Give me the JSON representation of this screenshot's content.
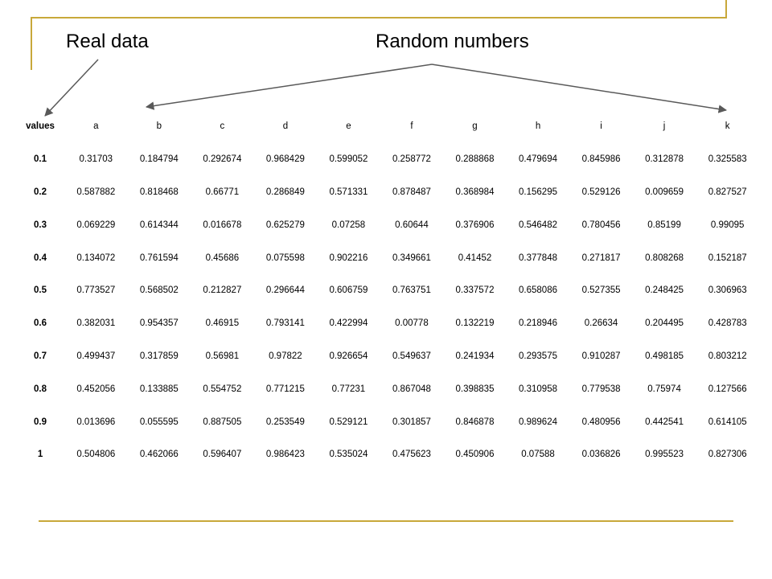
{
  "labels": {
    "real": "Real data",
    "random": "Random numbers"
  },
  "colors": {
    "accent_line": "#c8a83a",
    "arrow": "#595959"
  },
  "table": {
    "columns": [
      "values",
      "a",
      "b",
      "c",
      "d",
      "e",
      "f",
      "g",
      "h",
      "i",
      "j",
      "k"
    ],
    "rows": [
      [
        "0.1",
        "0.31703",
        "0.184794",
        "0.292674",
        "0.968429",
        "0.599052",
        "0.258772",
        "0.288868",
        "0.479694",
        "0.845986",
        "0.312878",
        "0.325583"
      ],
      [
        "0.2",
        "0.587882",
        "0.818468",
        "0.66771",
        "0.286849",
        "0.571331",
        "0.878487",
        "0.368984",
        "0.156295",
        "0.529126",
        "0.009659",
        "0.827527"
      ],
      [
        "0.3",
        "0.069229",
        "0.614344",
        "0.016678",
        "0.625279",
        "0.07258",
        "0.60644",
        "0.376906",
        "0.546482",
        "0.780456",
        "0.85199",
        "0.99095"
      ],
      [
        "0.4",
        "0.134072",
        "0.761594",
        "0.45686",
        "0.075598",
        "0.902216",
        "0.349661",
        "0.41452",
        "0.377848",
        "0.271817",
        "0.808268",
        "0.152187"
      ],
      [
        "0.5",
        "0.773527",
        "0.568502",
        "0.212827",
        "0.296644",
        "0.606759",
        "0.763751",
        "0.337572",
        "0.658086",
        "0.527355",
        "0.248425",
        "0.306963"
      ],
      [
        "0.6",
        "0.382031",
        "0.954357",
        "0.46915",
        "0.793141",
        "0.422994",
        "0.00778",
        "0.132219",
        "0.218946",
        "0.26634",
        "0.204495",
        "0.428783"
      ],
      [
        "0.7",
        "0.499437",
        "0.317859",
        "0.56981",
        "0.97822",
        "0.926654",
        "0.549637",
        "0.241934",
        "0.293575",
        "0.910287",
        "0.498185",
        "0.803212"
      ],
      [
        "0.8",
        "0.452056",
        "0.133885",
        "0.554752",
        "0.771215",
        "0.77231",
        "0.867048",
        "0.398835",
        "0.310958",
        "0.779538",
        "0.75974",
        "0.127566"
      ],
      [
        "0.9",
        "0.013696",
        "0.055595",
        "0.887505",
        "0.253549",
        "0.529121",
        "0.301857",
        "0.846878",
        "0.989624",
        "0.480956",
        "0.442541",
        "0.614105"
      ],
      [
        "1",
        "0.504806",
        "0.462066",
        "0.596407",
        "0.986423",
        "0.535024",
        "0.475623",
        "0.450906",
        "0.07588",
        "0.036826",
        "0.995523",
        "0.827306"
      ]
    ]
  }
}
